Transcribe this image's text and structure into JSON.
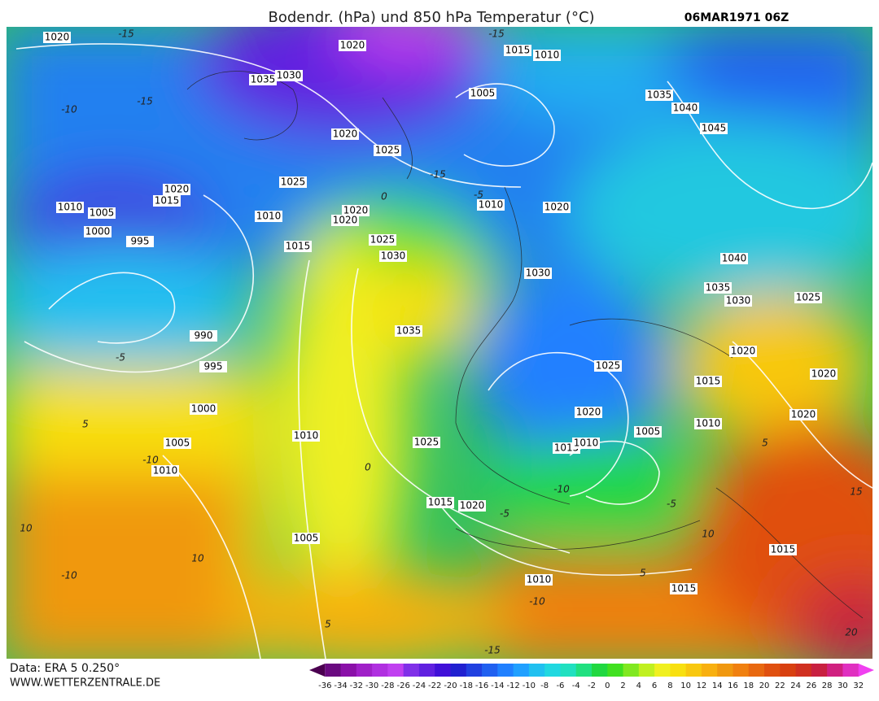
{
  "header": {
    "title": "Bodendr. (hPa) und 850 hPa Temperatur (°C)",
    "date": "06MAR1971 06Z"
  },
  "footer": {
    "source": "Data: ERA 5 0.250°",
    "site": "WWW.WETTERZENTRALE.DE"
  },
  "isobar_labels": [
    "1020",
    "1020",
    "1015",
    "1010",
    "1035",
    "1030",
    "1005",
    "1035",
    "1040",
    "1020",
    "1025",
    "1045",
    "1025",
    "1020",
    "1015",
    "1010",
    "1005",
    "1010",
    "1020",
    "1020",
    "1010",
    "1020",
    "1000",
    "995",
    "1025",
    "1015",
    "1030",
    "1040",
    "1030",
    "1035",
    "1030",
    "1025",
    "1035",
    "990",
    "1020",
    "995",
    "1025",
    "1015",
    "1020",
    "1000",
    "1020",
    "1010",
    "1020",
    "1005",
    "1010",
    "1025",
    "1005",
    "1015",
    "1010",
    "1010",
    "1015",
    "1020",
    "1005",
    "1015",
    "1010",
    "1015"
  ],
  "temperature_labels": [
    "-15",
    "-10",
    "-15",
    "-5",
    "-15",
    "-15",
    "-5",
    "0",
    "5",
    "-10",
    "10",
    "-10",
    "10",
    "-5",
    "0",
    "5",
    "-10",
    "-5",
    "5",
    "10",
    "5",
    "-10",
    "-15",
    "15",
    "20"
  ],
  "colorbar": {
    "ticks": [
      -36,
      -34,
      -32,
      -30,
      -28,
      -26,
      -24,
      -22,
      -20,
      -18,
      -16,
      -14,
      -12,
      -10,
      -8,
      -6,
      -4,
      -2,
      0,
      2,
      4,
      6,
      8,
      10,
      12,
      14,
      16,
      18,
      20,
      22,
      24,
      26,
      28,
      30,
      32
    ],
    "colors": [
      "#4b0050",
      "#6a0a80",
      "#8a10a8",
      "#a020c8",
      "#b030e0",
      "#c040f0",
      "#8030e8",
      "#6020e0",
      "#4010d8",
      "#2020d0",
      "#2040e0",
      "#2060f0",
      "#2080ff",
      "#20a0ff",
      "#20c0f0",
      "#20d8e0",
      "#20e0c0",
      "#20e080",
      "#20d840",
      "#40e020",
      "#80e820",
      "#c0f020",
      "#f0f020",
      "#f8e010",
      "#f8c810",
      "#f8b010",
      "#f09810",
      "#f08010",
      "#e86810",
      "#e05010",
      "#d84010",
      "#d03020",
      "#c82040",
      "#d02080",
      "#e030c0",
      "#f040f0"
    ]
  }
}
